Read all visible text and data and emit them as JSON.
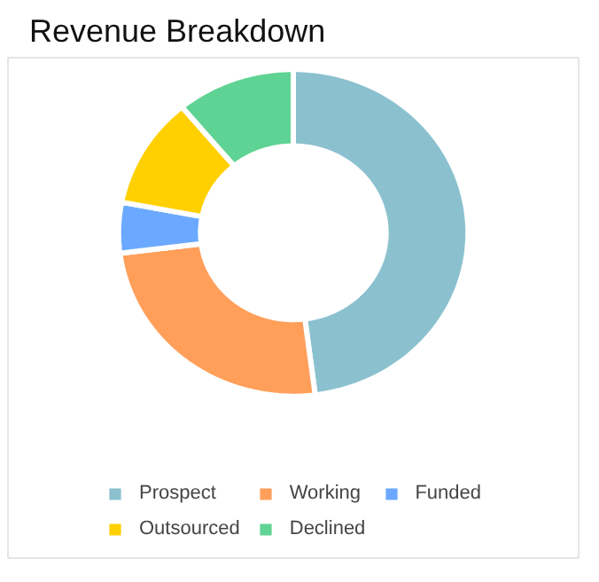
{
  "chart_data": {
    "type": "donut",
    "title": "Revenue Breakdown",
    "categories": [
      "Prospect",
      "Working",
      "Funded",
      "Outsourced",
      "Declined"
    ],
    "values": [
      48,
      25,
      5,
      11,
      11
    ],
    "colors": [
      "#8bc1cf",
      "#ff9f5a",
      "#6aa9ff",
      "#ffd000",
      "#5fd394"
    ],
    "legend": "bottom"
  }
}
